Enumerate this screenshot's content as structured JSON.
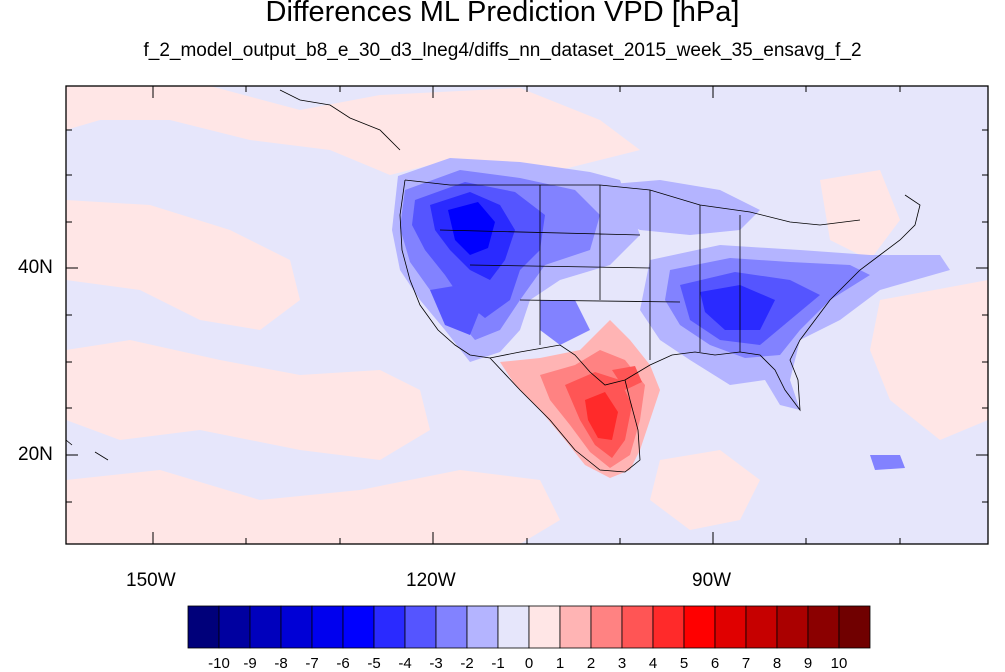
{
  "title": "Differences ML Prediction VPD [hPa]",
  "subtitle": "f_2_model_output_b8_e_30_d3_lneg4/diffs_nn_dataset_2015_week_35_ensavg_f_2",
  "lat_labels": [
    "40N",
    "20N"
  ],
  "lon_labels": [
    "150W",
    "120W",
    "90W"
  ],
  "colorbar": {
    "labels": [
      "-10",
      "-9",
      "-8",
      "-7",
      "-6",
      "-5",
      "-4",
      "-3",
      "-2",
      "-1",
      "0",
      "1",
      "2",
      "3",
      "4",
      "5",
      "6",
      "7",
      "8",
      "9",
      "10"
    ],
    "colors": [
      "#00007a",
      "#0000a0",
      "#0000bd",
      "#0000d6",
      "#0000ee",
      "#0000ff",
      "#2a2aff",
      "#5555ff",
      "#8282ff",
      "#b4b4ff",
      "#e6e6fb",
      "#ffe6e6",
      "#ffb4b4",
      "#ff8282",
      "#ff5555",
      "#ff2a2a",
      "#ff0000",
      "#e00000",
      "#c60000",
      "#aa0000",
      "#8b0000",
      "#700000"
    ]
  }
}
